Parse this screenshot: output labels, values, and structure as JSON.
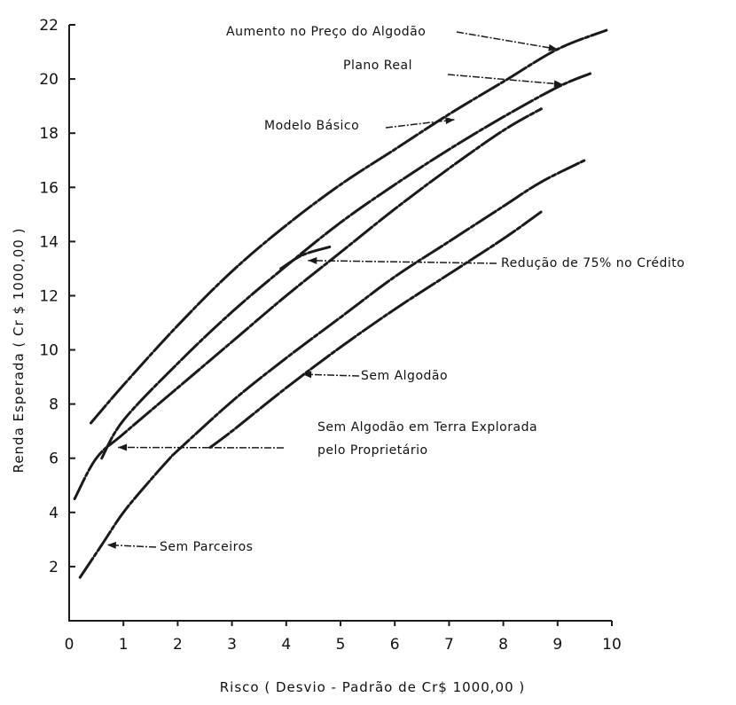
{
  "chart_data": {
    "type": "line",
    "xlabel": "Risco ( Desvio - Padrão de Cr$ 1000,00 )",
    "ylabel": "Renda Esperada ( Cr $ 1000,00 )",
    "xlim": [
      0,
      10
    ],
    "ylim": [
      0,
      22
    ],
    "x_ticks": [
      "0",
      "1",
      "2",
      "3",
      "4",
      "5",
      "6",
      "7",
      "8",
      "9",
      "10"
    ],
    "y_ticks": [
      "2",
      "4",
      "6",
      "8",
      "10",
      "12",
      "14",
      "16",
      "18",
      "20",
      "22"
    ],
    "grid": false,
    "series": [
      {
        "name": "Aumento no Preço do Algodão",
        "x": [
          0.4,
          1,
          2,
          3,
          4,
          5,
          6,
          7,
          8,
          9,
          9.9
        ],
        "y": [
          7.3,
          8.7,
          10.9,
          12.9,
          14.6,
          16.1,
          17.4,
          18.7,
          19.9,
          21.1,
          21.8
        ]
      },
      {
        "name": "Plano Real",
        "x": [
          0.6,
          1,
          2,
          3,
          4,
          5,
          6,
          7,
          8,
          9,
          9.6
        ],
        "y": [
          6.0,
          7.4,
          9.5,
          11.4,
          13.1,
          14.7,
          16.1,
          17.4,
          18.6,
          19.7,
          20.2
        ]
      },
      {
        "name": "Modelo Básico",
        "x": [
          0.1,
          0.5,
          1,
          2,
          3,
          4,
          5,
          6,
          7,
          8,
          8.7
        ],
        "y": [
          4.5,
          6.0,
          6.9,
          8.6,
          10.3,
          12.0,
          13.6,
          15.2,
          16.7,
          18.1,
          18.9
        ]
      },
      {
        "name": "Redução de 75% no Crédito",
        "x": [
          3.9,
          4.3,
          4.8
        ],
        "y": [
          13.0,
          13.5,
          13.8
        ]
      },
      {
        "name": "Sem Algodão",
        "x": [
          1.9,
          3,
          4,
          5,
          6,
          7,
          8,
          8.7,
          9.5
        ],
        "y": [
          6.1,
          8.1,
          9.7,
          11.2,
          12.7,
          14.0,
          15.3,
          16.2,
          17.0
        ]
      },
      {
        "name": "Sem Algodão em Terra Explorada pelo Proprietário",
        "x": [
          2.6,
          3,
          4,
          5,
          6,
          7,
          8,
          8.7
        ],
        "y": [
          6.4,
          7.0,
          8.6,
          10.1,
          11.5,
          12.8,
          14.1,
          15.1
        ]
      },
      {
        "name": "Sem Parceiros",
        "x": [
          0.2,
          0.6,
          1,
          1.5,
          1.9
        ],
        "y": [
          1.6,
          2.8,
          4.0,
          5.2,
          6.1
        ]
      }
    ],
    "annotations": [
      {
        "text": "Aumento no Preço do Algodão",
        "target": [
          9.0,
          21.1
        ]
      },
      {
        "text": "Plano Real",
        "target": [
          9.1,
          19.8
        ]
      },
      {
        "text": "Modelo Básico",
        "target": [
          7.1,
          18.5
        ]
      },
      {
        "text": "Redução de 75% no Crédito",
        "target": [
          4.4,
          13.3
        ]
      },
      {
        "text": "Sem Algodão",
        "target": [
          4.3,
          9.1
        ]
      },
      {
        "text": "Sem Algodão em Terra Explorada",
        "target": [
          0.9,
          6.4
        ]
      },
      {
        "text": "pelo Proprietário",
        "target": null
      },
      {
        "text": "Sem Parceiros",
        "target": [
          0.7,
          2.8
        ]
      }
    ]
  }
}
